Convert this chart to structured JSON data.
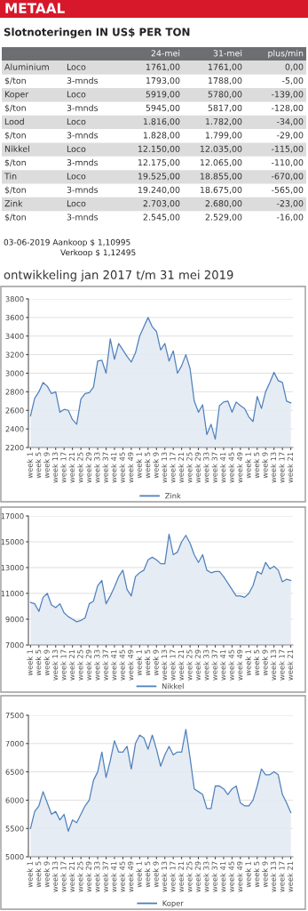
{
  "chart_data": [
    {
      "type": "other",
      "title": "METAAL",
      "subtitle": "Slotnoteringen IN US$ PER TON",
      "categories": [
        null,
        null,
        "24-mei",
        "31-mei",
        "plus/min"
      ],
      "cell_labels": [
        [
          "Aluminium",
          "Loco",
          "1761,00",
          "1761,00",
          "0,00"
        ],
        [
          "$/ton",
          "3-mnds",
          "1793,00",
          "1788,00",
          "-5,00"
        ],
        [
          "Koper",
          "Loco",
          "5919,00",
          "5780,00",
          "-139,00"
        ],
        [
          "$/ton",
          "3-mnds",
          "5945,00",
          "5817,00",
          "-128,00"
        ],
        [
          "Lood",
          "Loco",
          "1.816,00",
          "1.782,00",
          "-34,00"
        ],
        [
          "$/ton",
          "3-mnds",
          "1.828,00",
          "1.799,00",
          "-29,00"
        ],
        [
          "Nikkel",
          "Loco",
          "12.150,00",
          "12.035,00",
          "-115,00"
        ],
        [
          "$/ton",
          "3-mnds",
          "12.175,00",
          "12.065,00",
          "-110,00"
        ],
        [
          "Tin",
          "Loco",
          "19.525,00",
          "18.855,00",
          "-670,00"
        ],
        [
          "$/ton",
          "3-mnds",
          "19.240,00",
          "18.675,00",
          "-565,00"
        ],
        [
          "Zink",
          "Loco",
          "2.703,00",
          "2.680,00",
          "-23,00"
        ],
        [
          "$/ton",
          "3-mnds",
          "2.545,00",
          "2.529,00",
          "-16,00"
        ]
      ],
      "annotations": [
        "03-06-2019 Aankoop $ 1,10995",
        "Verkoop $ 1,12495"
      ]
    },
    {
      "type": "area",
      "title": "ontwikkeling jan 2017 t/m 31 mei 2019",
      "categories": [
        "week 1",
        null,
        "week 5",
        null,
        "week 9",
        null,
        "week 13",
        null,
        "week 17",
        null,
        "week 21",
        null,
        "week 25",
        null,
        "week 29",
        null,
        "week 33",
        null,
        "week 37",
        null,
        "week 41",
        null,
        "week 45",
        null,
        "week 49",
        null,
        "week 1",
        null,
        "week 5",
        null,
        "week 9",
        null,
        "week 13",
        null,
        "week 17",
        null,
        "week 21",
        null,
        "week 25",
        null,
        "week 29",
        null,
        "week 33",
        null,
        "week 37",
        null,
        "week 41",
        null,
        "week 45",
        null,
        "week 49",
        null,
        "week 1",
        null,
        "week 5",
        null,
        "week 9",
        null,
        "week 13",
        null,
        "week 17",
        null,
        "week 21"
      ],
      "series": [
        {
          "name": "Zink",
          "color": "#4f81bd",
          "values": [
            2540,
            2730,
            2800,
            2900,
            2860,
            2780,
            2800,
            2580,
            2610,
            2600,
            2500,
            2450,
            2720,
            2780,
            2790,
            2850,
            3130,
            3140,
            3000,
            3370,
            3150,
            3320,
            3250,
            3180,
            3120,
            3220,
            3400,
            3500,
            3600,
            3500,
            3450,
            3250,
            3320,
            3130,
            3240,
            3000,
            3080,
            3200,
            3050,
            2700,
            2580,
            2660,
            2340,
            2450,
            2290,
            2650,
            2690,
            2700,
            2580,
            2690,
            2650,
            2620,
            2530,
            2480,
            2750,
            2620,
            2800,
            2900,
            3010,
            2920,
            2900,
            2700,
            2680
          ]
        }
      ],
      "ylim": [
        2200,
        3800
      ],
      "yticks": [
        2200,
        2400,
        2600,
        2800,
        3000,
        3200,
        3400,
        3600,
        3800
      ],
      "grid": "y",
      "legend": "bottom",
      "marker": "none",
      "line_style": "solid"
    },
    {
      "type": "area",
      "categories": [
        "week 1",
        null,
        "week 5",
        null,
        "week 9",
        null,
        "week 13",
        null,
        "week 17",
        null,
        "week 21",
        null,
        "week 25",
        null,
        "week 29",
        null,
        "week 33",
        null,
        "week 37",
        null,
        "week 41",
        null,
        "week 45",
        null,
        "week 49",
        null,
        "week 1",
        null,
        "week 5",
        null,
        "week 9",
        null,
        "week 13",
        null,
        "week 17",
        null,
        "week 21",
        null,
        "week 25",
        null,
        "week 29",
        null,
        "week 33",
        null,
        "week 37",
        null,
        "week 41",
        null,
        "week 45",
        null,
        "week 49",
        null,
        "week 1",
        null,
        "week 5",
        null,
        "week 9",
        null,
        "week 13",
        null,
        "week 17",
        null,
        "week 21"
      ],
      "series": [
        {
          "name": "Nikkel",
          "color": "#4f81bd",
          "values": [
            10300,
            10200,
            9600,
            10700,
            11000,
            10100,
            9900,
            10200,
            9500,
            9200,
            9000,
            8800,
            8900,
            9100,
            10200,
            10400,
            11600,
            12000,
            10200,
            10800,
            11500,
            12300,
            12800,
            11300,
            10800,
            12300,
            12600,
            12800,
            13600,
            13800,
            13600,
            13300,
            13300,
            15600,
            14000,
            14200,
            15000,
            15500,
            14900,
            14000,
            13400,
            14000,
            12800,
            12600,
            12700,
            12700,
            12300,
            11800,
            11300,
            10800,
            10800,
            10700,
            11000,
            11600,
            12700,
            12500,
            13400,
            12900,
            13100,
            12800,
            11900,
            12100,
            12000
          ]
        }
      ],
      "ylim": [
        7000,
        17000
      ],
      "yticks": [
        7000,
        9000,
        11000,
        13000,
        15000,
        17000
      ],
      "grid": "y",
      "legend": "bottom",
      "marker": "none",
      "line_style": "solid"
    },
    {
      "type": "area",
      "categories": [
        "week 1",
        null,
        "week 5",
        null,
        "week 9",
        null,
        "week 13",
        null,
        "week 17",
        null,
        "week 21",
        null,
        "week 25",
        null,
        "week 29",
        null,
        "week 33",
        null,
        "week 37",
        null,
        "week 41",
        null,
        "week 45",
        null,
        "week 49",
        null,
        "week 1",
        null,
        "week 5",
        null,
        "week 9",
        null,
        "week 13",
        null,
        "week 17",
        null,
        "week 21",
        null,
        "week 25",
        null,
        "week 29",
        null,
        "week 33",
        null,
        "week 37",
        null,
        "week 41",
        null,
        "week 45",
        null,
        "week 49",
        null,
        "week 1",
        null,
        "week 5",
        null,
        "week 9",
        null,
        "week 13",
        null,
        "week 17",
        null,
        "week 21"
      ],
      "series": [
        {
          "name": "Koper",
          "color": "#4f81bd",
          "values": [
            5500,
            5800,
            5900,
            6150,
            5950,
            5750,
            5800,
            5650,
            5750,
            5450,
            5650,
            5600,
            5750,
            5900,
            6000,
            6350,
            6500,
            6850,
            6400,
            6700,
            7050,
            6850,
            6850,
            6950,
            6550,
            7000,
            7150,
            7100,
            6900,
            7150,
            6900,
            6600,
            6800,
            6950,
            6800,
            6850,
            6850,
            7250,
            6750,
            6200,
            6150,
            6100,
            5850,
            5850,
            6250,
            6250,
            6200,
            6100,
            6200,
            6250,
            5950,
            5900,
            5900,
            6000,
            6250,
            6550,
            6450,
            6450,
            6500,
            6450,
            6100,
            5950,
            5780
          ]
        }
      ],
      "ylim": [
        5000,
        7500
      ],
      "yticks": [
        5000,
        5500,
        6000,
        6500,
        7000,
        7500
      ],
      "grid": "y",
      "legend": "bottom",
      "marker": "none",
      "line_style": "solid"
    }
  ]
}
